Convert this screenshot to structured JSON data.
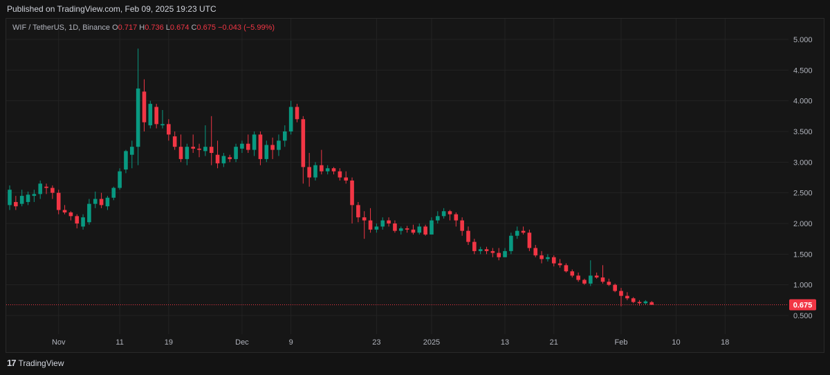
{
  "header": {
    "published": "Published on TradingView.com, Feb 09, 2025 19:23 UTC"
  },
  "legend": {
    "symbol": "WIF / TetherUS, 1D, Binance",
    "o_label": "O",
    "o_value": "0.717",
    "h_label": "H",
    "h_value": "0.736",
    "l_label": "L",
    "l_value": "0.674",
    "c_label": "C",
    "c_value": "0.675",
    "change": "−0.043 (−5.99%)"
  },
  "footer": {
    "logo": "17",
    "brand": "TradingView"
  },
  "colors": {
    "up": "#089981",
    "down": "#f23645",
    "grid": "#232323",
    "last_price": "#f23645"
  },
  "chart_data": {
    "type": "candlestick",
    "ylim": [
      0.45,
      5.25
    ],
    "yticks": [
      "5.000",
      "4.500",
      "4.000",
      "3.500",
      "3.000",
      "2.500",
      "2.000",
      "1.500",
      "1.000",
      "0.500"
    ],
    "ytick_values": [
      5.0,
      4.5,
      4.0,
      3.5,
      3.0,
      2.5,
      2.0,
      1.5,
      1.0,
      0.5
    ],
    "xticks": [
      {
        "label": "Nov",
        "day": 8
      },
      {
        "label": "11",
        "day": 18
      },
      {
        "label": "19",
        "day": 26
      },
      {
        "label": "Dec",
        "day": 38
      },
      {
        "label": "9",
        "day": 46
      },
      {
        "label": "23",
        "day": 60
      },
      {
        "label": "2025",
        "day": 69
      },
      {
        "label": "13",
        "day": 81
      },
      {
        "label": "21",
        "day": 89
      },
      {
        "label": "Feb",
        "day": 100
      },
      {
        "label": "10",
        "day": 109
      },
      {
        "label": "18",
        "day": 117
      }
    ],
    "last_price": 0.675,
    "last_price_label": "0.675",
    "candles": [
      [
        2.3,
        2.62,
        2.22,
        2.55
      ],
      [
        2.35,
        2.45,
        2.22,
        2.28
      ],
      [
        2.32,
        2.55,
        2.28,
        2.45
      ],
      [
        2.35,
        2.52,
        2.3,
        2.47
      ],
      [
        2.45,
        2.55,
        2.35,
        2.48
      ],
      [
        2.48,
        2.7,
        2.4,
        2.65
      ],
      [
        2.6,
        2.65,
        2.48,
        2.58
      ],
      [
        2.58,
        2.62,
        2.4,
        2.5
      ],
      [
        2.5,
        2.55,
        2.15,
        2.22
      ],
      [
        2.22,
        2.3,
        2.15,
        2.18
      ],
      [
        2.18,
        2.2,
        2.05,
        2.12
      ],
      [
        2.12,
        2.15,
        1.92,
        2.0
      ],
      [
        1.95,
        2.15,
        1.9,
        2.1
      ],
      [
        2.02,
        2.4,
        1.98,
        2.32
      ],
      [
        2.32,
        2.52,
        2.25,
        2.4
      ],
      [
        2.4,
        2.5,
        2.25,
        2.3
      ],
      [
        2.28,
        2.45,
        2.22,
        2.42
      ],
      [
        2.42,
        2.6,
        2.38,
        2.58
      ],
      [
        2.58,
        2.9,
        2.55,
        2.85
      ],
      [
        2.88,
        3.2,
        2.82,
        3.18
      ],
      [
        3.12,
        3.35,
        2.9,
        3.25
      ],
      [
        3.25,
        4.85,
        2.95,
        4.2
      ],
      [
        4.15,
        4.35,
        3.5,
        3.65
      ],
      [
        3.6,
        4.0,
        3.55,
        3.95
      ],
      [
        3.9,
        3.95,
        3.55,
        3.62
      ],
      [
        3.6,
        3.85,
        3.55,
        3.62
      ],
      [
        3.62,
        3.7,
        3.35,
        3.45
      ],
      [
        3.42,
        3.5,
        3.2,
        3.25
      ],
      [
        3.25,
        3.45,
        3.0,
        3.05
      ],
      [
        3.05,
        3.3,
        2.95,
        3.25
      ],
      [
        3.25,
        3.45,
        3.15,
        3.22
      ],
      [
        3.22,
        3.3,
        3.08,
        3.2
      ],
      [
        3.18,
        3.6,
        3.1,
        3.25
      ],
      [
        3.25,
        3.75,
        2.95,
        3.15
      ],
      [
        3.12,
        3.35,
        2.9,
        2.98
      ],
      [
        2.98,
        3.15,
        2.92,
        3.1
      ],
      [
        3.08,
        3.12,
        3.0,
        3.05
      ],
      [
        3.05,
        3.3,
        3.0,
        3.25
      ],
      [
        3.22,
        3.35,
        3.15,
        3.3
      ],
      [
        3.3,
        3.45,
        3.15,
        3.2
      ],
      [
        3.2,
        3.5,
        3.1,
        3.45
      ],
      [
        3.45,
        3.5,
        2.95,
        3.05
      ],
      [
        3.05,
        3.35,
        3.0,
        3.28
      ],
      [
        3.28,
        3.4,
        3.05,
        3.2
      ],
      [
        3.2,
        3.45,
        3.1,
        3.35
      ],
      [
        3.35,
        3.6,
        3.25,
        3.5
      ],
      [
        3.5,
        4.0,
        3.45,
        3.9
      ],
      [
        3.9,
        3.95,
        3.65,
        3.7
      ],
      [
        3.7,
        3.75,
        2.65,
        2.92
      ],
      [
        2.92,
        3.15,
        2.6,
        2.75
      ],
      [
        2.75,
        3.0,
        2.7,
        2.95
      ],
      [
        2.95,
        3.2,
        2.8,
        2.85
      ],
      [
        2.85,
        2.95,
        2.8,
        2.9
      ],
      [
        2.9,
        2.92,
        2.8,
        2.85
      ],
      [
        2.85,
        2.9,
        2.7,
        2.75
      ],
      [
        2.75,
        2.85,
        2.65,
        2.7
      ],
      [
        2.7,
        2.75,
        2.0,
        2.3
      ],
      [
        2.3,
        2.35,
        2.02,
        2.1
      ],
      [
        2.1,
        2.2,
        1.75,
        2.05
      ],
      [
        2.05,
        2.25,
        1.85,
        1.9
      ],
      [
        1.9,
        2.0,
        1.85,
        1.95
      ],
      [
        1.95,
        2.1,
        1.9,
        2.05
      ],
      [
        2.05,
        2.1,
        1.95,
        2.0
      ],
      [
        2.0,
        2.05,
        1.85,
        1.88
      ],
      [
        1.88,
        1.95,
        1.82,
        1.92
      ],
      [
        1.92,
        1.96,
        1.85,
        1.9
      ],
      [
        1.9,
        1.98,
        1.82,
        1.85
      ],
      [
        1.85,
        2.0,
        1.82,
        1.95
      ],
      [
        1.95,
        1.98,
        1.8,
        1.82
      ],
      [
        1.82,
        2.1,
        1.82,
        2.05
      ],
      [
        2.05,
        2.2,
        2.0,
        2.12
      ],
      [
        2.12,
        2.25,
        2.08,
        2.2
      ],
      [
        2.2,
        2.22,
        2.05,
        2.15
      ],
      [
        2.15,
        2.18,
        1.95,
        2.05
      ],
      [
        2.05,
        2.1,
        1.8,
        1.88
      ],
      [
        1.88,
        1.95,
        1.65,
        1.7
      ],
      [
        1.7,
        1.75,
        1.5,
        1.55
      ],
      [
        1.55,
        1.62,
        1.5,
        1.58
      ],
      [
        1.58,
        1.62,
        1.5,
        1.55
      ],
      [
        1.55,
        1.6,
        1.45,
        1.52
      ],
      [
        1.52,
        1.6,
        1.4,
        1.45
      ],
      [
        1.45,
        1.6,
        1.45,
        1.55
      ],
      [
        1.55,
        1.85,
        1.5,
        1.8
      ],
      [
        1.8,
        1.95,
        1.75,
        1.88
      ],
      [
        1.88,
        1.95,
        1.82,
        1.85
      ],
      [
        1.85,
        1.9,
        1.55,
        1.6
      ],
      [
        1.6,
        1.65,
        1.45,
        1.48
      ],
      [
        1.48,
        1.55,
        1.35,
        1.42
      ],
      [
        1.42,
        1.5,
        1.38,
        1.45
      ],
      [
        1.45,
        1.48,
        1.3,
        1.35
      ],
      [
        1.35,
        1.42,
        1.28,
        1.32
      ],
      [
        1.32,
        1.35,
        1.2,
        1.22
      ],
      [
        1.22,
        1.25,
        1.12,
        1.15
      ],
      [
        1.15,
        1.2,
        1.05,
        1.08
      ],
      [
        1.08,
        1.1,
        1.0,
        1.02
      ],
      [
        1.02,
        1.4,
        0.98,
        1.15
      ],
      [
        1.15,
        1.2,
        1.1,
        1.12
      ],
      [
        1.12,
        1.32,
        1.02,
        1.05
      ],
      [
        1.05,
        1.1,
        0.98,
        1.0
      ],
      [
        1.0,
        1.02,
        0.88,
        0.9
      ],
      [
        0.9,
        0.95,
        0.65,
        0.82
      ],
      [
        0.82,
        0.88,
        0.75,
        0.78
      ],
      [
        0.78,
        0.8,
        0.7,
        0.72
      ],
      [
        0.72,
        0.75,
        0.66,
        0.7
      ],
      [
        0.7,
        0.75,
        0.68,
        0.73
      ],
      [
        0.717,
        0.736,
        0.674,
        0.675
      ]
    ]
  }
}
